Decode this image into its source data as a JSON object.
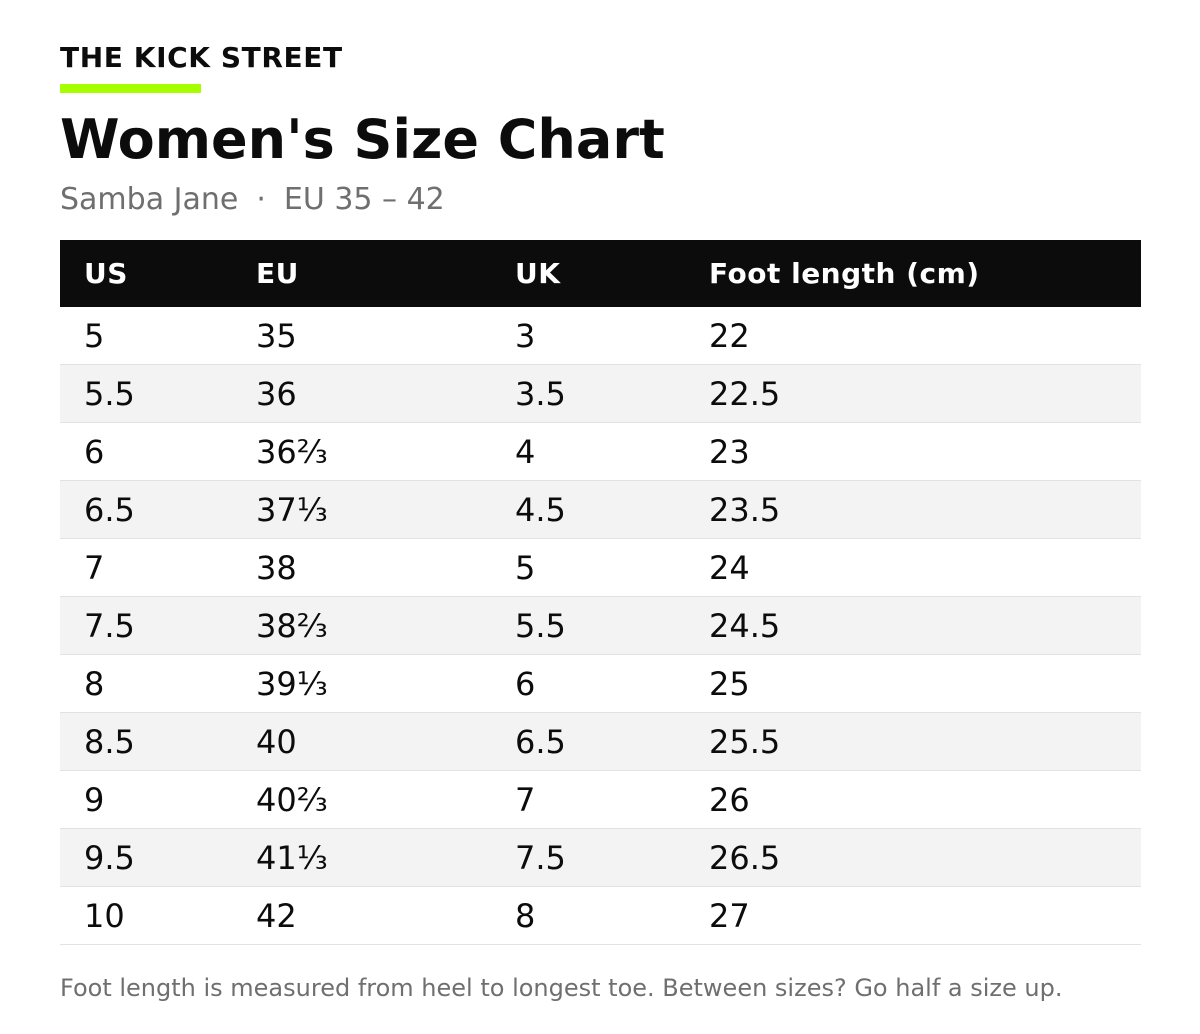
{
  "brand": {
    "name": "THE KICK STREET",
    "accent_color": "#a6ff00"
  },
  "title": "Women's Size Chart",
  "subtitle": {
    "model": "Samba Jane",
    "separator": "·",
    "range": "EU 35 – 42"
  },
  "table": {
    "columns": [
      "US",
      "EU",
      "UK",
      "Foot length (cm)"
    ],
    "rows": [
      [
        "5",
        "35",
        "3",
        "22"
      ],
      [
        "5.5",
        "36",
        "3.5",
        "22.5"
      ],
      [
        "6",
        "36⅔",
        "4",
        "23"
      ],
      [
        "6.5",
        "37⅓",
        "4.5",
        "23.5"
      ],
      [
        "7",
        "38",
        "5",
        "24"
      ],
      [
        "7.5",
        "38⅔",
        "5.5",
        "24.5"
      ],
      [
        "8",
        "39⅓",
        "6",
        "25"
      ],
      [
        "8.5",
        "40",
        "6.5",
        "25.5"
      ],
      [
        "9",
        "40⅔",
        "7",
        "26"
      ],
      [
        "9.5",
        "41⅓",
        "7.5",
        "26.5"
      ],
      [
        "10",
        "42",
        "8",
        "27"
      ]
    ]
  },
  "footnote": "Foot length is measured from heel to longest toe. Between sizes? Go half a size up."
}
